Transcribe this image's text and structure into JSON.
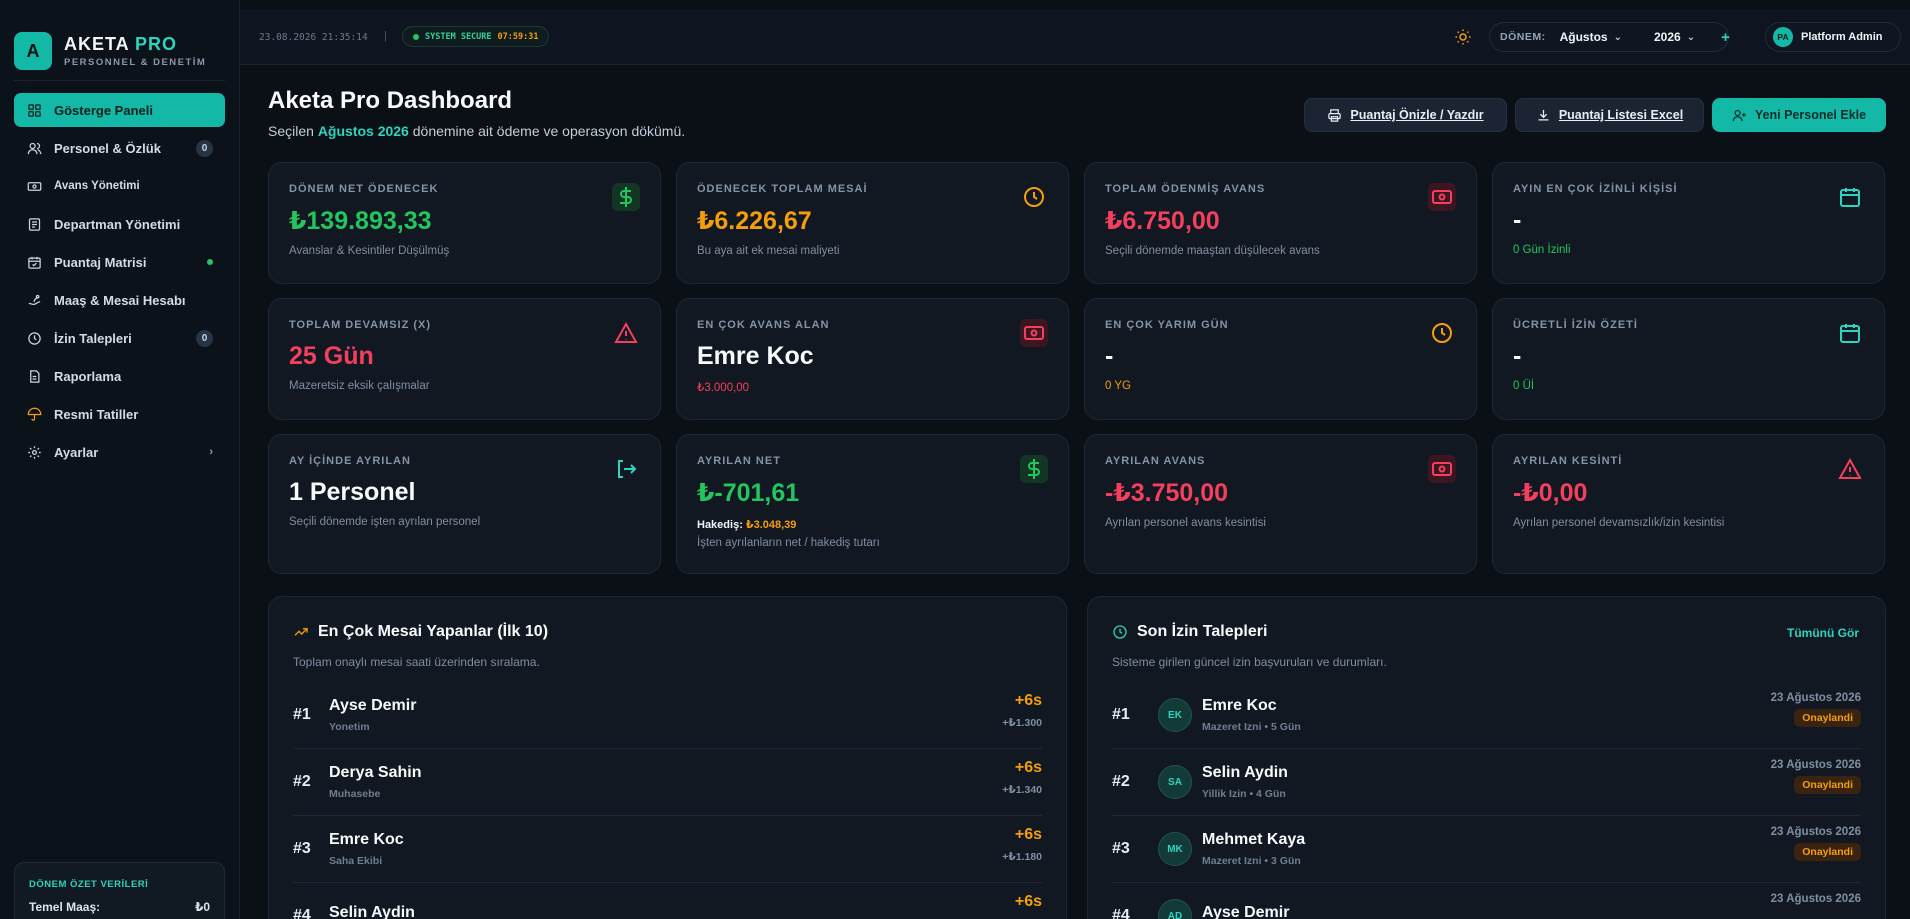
{
  "brand": {
    "logo_letter": "A",
    "name": "AKETA",
    "name_accent": "PRO",
    "subtitle": "PERSONNEL & DENETİM"
  },
  "sidebar": {
    "items": [
      {
        "label": "Gösterge Paneli",
        "icon": "grid-icon",
        "active": true
      },
      {
        "label": "Personel & Özlük",
        "icon": "users-icon",
        "badge": "0"
      },
      {
        "label": "Avans Yönetimi",
        "icon": "banknote-icon"
      },
      {
        "label": "Departman Yönetimi",
        "icon": "building-icon"
      },
      {
        "label": "Puantaj Matrisi",
        "icon": "calendar-icon",
        "dot": true
      },
      {
        "label": "Maaş & Mesai Hesabı",
        "icon": "coins-icon"
      },
      {
        "label": "İzin Talepleri",
        "icon": "clock-icon",
        "badge": "0"
      },
      {
        "label": "Raporlama",
        "icon": "file-icon"
      },
      {
        "label": "Resmi Tatiller",
        "icon": "umbrella-icon"
      },
      {
        "label": "Ayarlar",
        "icon": "gear-icon",
        "chevron": "›"
      }
    ],
    "summary": {
      "title": "DÖNEM ÖZET VERİLERİ",
      "row_label": "Temel Maaş:",
      "row_value": "₺0"
    }
  },
  "topbar": {
    "datetime": "23.08.2026 21:35:14",
    "separator": "|",
    "secure_label": "SYSTEM SECURE",
    "secure_time": "07:59:31",
    "period_label": "DÖNEM:",
    "period_month": "Ağustos",
    "period_year": "2026",
    "plus": "+",
    "user_initials": "PA",
    "user_name": "Platform Admin"
  },
  "header": {
    "title": "Aketa Pro Dashboard",
    "subtitle_pre": "Seçilen",
    "subtitle_highlight": "Ağustos 2026",
    "subtitle_post": "dönemine ait ödeme ve operasyon dökümü.",
    "btn_print": "Puantaj Önizle / Yazdır",
    "btn_excel": "Puantaj Listesi Excel",
    "btn_new": "Yeni Personel Ekle"
  },
  "cards": [
    {
      "label": "DÖNEM NET ÖDENECEK",
      "value": "₺139.893,33",
      "desc": "Avanslar & Kesintiler Düşülmüş"
    },
    {
      "label": "ÖDENECEK TOPLAM MESAİ",
      "value": "₺6.226,67",
      "desc": "Bu aya ait ek mesai maliyeti"
    },
    {
      "label": "TOPLAM ÖDENMİŞ AVANS",
      "value": "₺6.750,00",
      "desc": "Seçili dönemde maaştan düşülecek avans"
    },
    {
      "label": "AYIN EN ÇOK İZİNLİ KİŞİSİ",
      "value": "-",
      "note": "0 Gün İzinli"
    },
    {
      "label": "TOPLAM DEVAMSIZ (X)",
      "value": "25 Gün",
      "desc": "Mazeretsiz eksik çalışmalar"
    },
    {
      "label": "EN ÇOK AVANS ALAN",
      "value": "Emre Koc",
      "note": "₺3.000,00"
    },
    {
      "label": "EN ÇOK YARIM GÜN",
      "value": "-",
      "note": "0 YG"
    },
    {
      "label": "ÜCRETLİ İZİN ÖZETİ",
      "value": "-",
      "note": "0 Üİ"
    },
    {
      "label": "AY İÇİNDE AYRILAN",
      "value": "1 Personel",
      "desc": "Seçili dönemde işten ayrılan personel"
    },
    {
      "label": "AYRILAN NET",
      "value": "₺-701,61",
      "hak_label": "Hakediş:",
      "hak_value": "₺3.048,39",
      "desc": "İşten ayrılanların net / hakediş tutarı"
    },
    {
      "label": "AYRILAN AVANS",
      "value": "-₺3.750,00",
      "desc": "Ayrılan personel avans kesintisi"
    },
    {
      "label": "AYRILAN KESİNTİ",
      "value": "-₺0,00",
      "desc": "Ayrılan personel devamsızlık/izin kesintisi"
    }
  ],
  "overtime": {
    "title": "En Çok Mesai Yapanlar (İlk 10)",
    "subtitle": "Toplam onaylı mesai saati üzerinden sıralama.",
    "rows": [
      {
        "rank": "#1",
        "name": "Ayse Demir",
        "dept": "Yonetim",
        "hours": "+6s",
        "amount": "+₺1.300"
      },
      {
        "rank": "#2",
        "name": "Derya Sahin",
        "dept": "Muhasebe",
        "hours": "+6s",
        "amount": "+₺1.340"
      },
      {
        "rank": "#3",
        "name": "Emre Koc",
        "dept": "Saha Ekibi",
        "hours": "+6s",
        "amount": "+₺1.180"
      },
      {
        "rank": "#4",
        "name": "Selin Aydin",
        "dept": "",
        "hours": "+6s",
        "amount": ""
      }
    ]
  },
  "leave": {
    "title": "Son İzin Talepleri",
    "link": "Tümünü Gör",
    "subtitle": "Sisteme girilen güncel izin başvuruları ve durumları.",
    "rows": [
      {
        "rank": "#1",
        "initials": "EK",
        "name": "Emre Koc",
        "detail": "Mazeret Izni • 5 Gün",
        "date": "23 Ağustos 2026",
        "status": "Onaylandi"
      },
      {
        "rank": "#2",
        "initials": "SA",
        "name": "Selin Aydin",
        "detail": "Yillik Izin • 4 Gün",
        "date": "23 Ağustos 2026",
        "status": "Onaylandi"
      },
      {
        "rank": "#3",
        "initials": "MK",
        "name": "Mehmet Kaya",
        "detail": "Mazeret Izni • 3 Gün",
        "date": "23 Ağustos 2026",
        "status": "Onaylandi"
      },
      {
        "rank": "#4",
        "initials": "AD",
        "name": "Ayse Demir",
        "detail": "",
        "date": "23 Ağustos 2026",
        "status": ""
      }
    ]
  }
}
